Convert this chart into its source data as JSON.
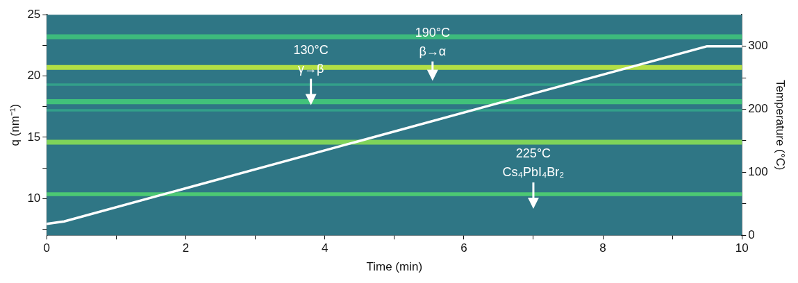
{
  "chart_data": {
    "type": "line",
    "xlabel": "Time (min)",
    "ylabel": "q (nm⁻¹)",
    "y2label": "Temperature (°C)",
    "xlim": [
      0,
      10
    ],
    "xticks": [
      0,
      {
        "value": 1,
        "label": null
      },
      2,
      {
        "value": 3,
        "label": null
      },
      4,
      {
        "value": 5,
        "label": null
      },
      6,
      {
        "value": 7,
        "label": null
      },
      8,
      {
        "value": 9,
        "label": null
      },
      10
    ],
    "ylim": [
      7,
      25
    ],
    "yticks": [
      {
        "value": 7.5,
        "label": null
      },
      10,
      {
        "value": 12.5,
        "label": null
      },
      15,
      {
        "value": 17.5,
        "label": null
      },
      20,
      {
        "value": 22.5,
        "label": null
      },
      25
    ],
    "y2lim": [
      0,
      350
    ],
    "y2ticks": [
      0,
      {
        "value": 50,
        "label": null
      },
      100,
      {
        "value": 150,
        "label": null
      },
      200,
      {
        "value": 250,
        "label": null
      },
      300
    ],
    "series": [
      {
        "type": "line",
        "axis": "y2",
        "color": "#ffffff",
        "x": [
          0,
          0.25,
          9.5,
          10
        ],
        "values": [
          18,
          22,
          300,
          300
        ]
      }
    ],
    "bands": [
      {
        "axis": "y",
        "from": 7,
        "to": 25,
        "color": "#2f7685"
      },
      {
        "axis": "y",
        "from": 23.0,
        "to": 23.4,
        "color": "#3dba7c"
      },
      {
        "axis": "y",
        "from": 20.5,
        "to": 20.9,
        "color": "#b3df45"
      },
      {
        "axis": "y",
        "from": 19.2,
        "to": 19.4,
        "color": "#33a08a"
      },
      {
        "axis": "y",
        "from": 17.7,
        "to": 18.1,
        "color": "#41c27a"
      },
      {
        "axis": "y",
        "from": 17.1,
        "to": 17.3,
        "color": "#33a08a"
      },
      {
        "axis": "y",
        "from": 14.4,
        "to": 14.8,
        "color": "#7fd35a"
      },
      {
        "axis": "y",
        "from": 10.2,
        "to": 10.5,
        "color": "#4cc873"
      }
    ],
    "annotations": [
      "130°C\nγ→β",
      "190°C\nβ→α",
      "225°C\nCs₄PbI₄Br₂"
    ],
    "grid": false,
    "legend": false,
    "marker": "none",
    "line_style": "solid"
  }
}
